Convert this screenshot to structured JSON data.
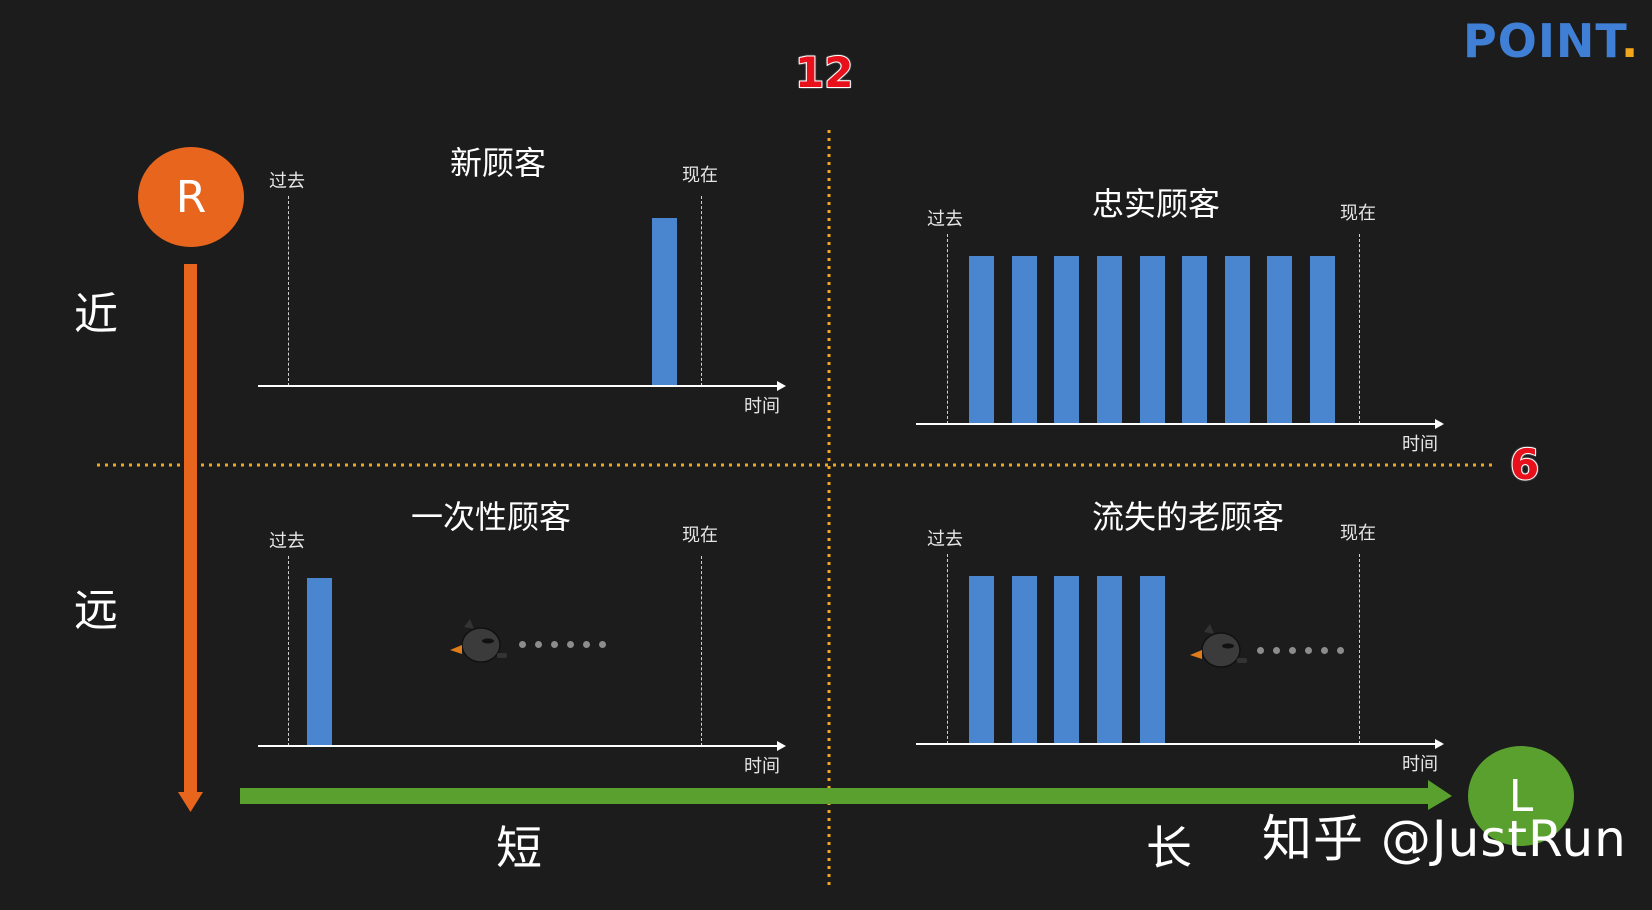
{
  "brand": {
    "text": "POINT",
    "dot": "."
  },
  "thresholds": {
    "vertical": "12",
    "horizontal": "6"
  },
  "axes": {
    "r_letter": "R",
    "l_letter": "L",
    "near": "近",
    "far": "远",
    "short": "短",
    "long": "长"
  },
  "watermark": "知乎 @JustRun",
  "panels": [
    {
      "title": "新顾客",
      "past": "过去",
      "now": "现在",
      "axis": "时间"
    },
    {
      "title": "忠实顾客",
      "past": "过去",
      "now": "现在",
      "axis": "时间"
    },
    {
      "title": "一次性顾客",
      "past": "过去",
      "now": "现在",
      "axis": "时间"
    },
    {
      "title": "流失的老顾客",
      "past": "过去",
      "now": "现在",
      "axis": "时间"
    }
  ],
  "colors": {
    "background": "#1c1c1c",
    "bar": "#4a86d0",
    "r_axis": "#e8651e",
    "l_axis": "#5aa02f",
    "threshold_line": "#f2a71b",
    "threshold_number": "#e8101a",
    "brand": "#3f80d6"
  },
  "icons": [
    "bird-icon",
    "bird-icon"
  ]
}
